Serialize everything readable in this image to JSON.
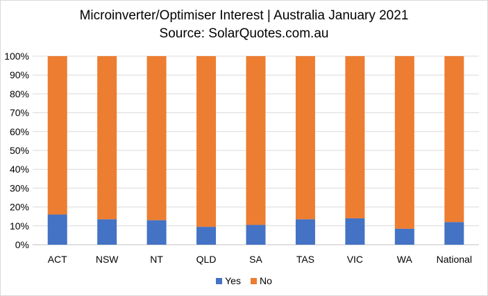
{
  "chart_data": {
    "type": "bar",
    "stacked": true,
    "title": "Microinverter/Optimiser  Interest | Australia January 2021",
    "subtitle": "Source: SolarQuotes.com.au",
    "categories": [
      "ACT",
      "NSW",
      "NT",
      "QLD",
      "SA",
      "TAS",
      "VIC",
      "WA",
      "National"
    ],
    "series": [
      {
        "name": "Yes",
        "color": "#4472c4",
        "values": [
          16,
          13.5,
          13,
          9.5,
          10.5,
          13.5,
          14,
          8.5,
          12
        ]
      },
      {
        "name": "No",
        "color": "#ed7d31",
        "values": [
          84,
          86.5,
          87,
          90.5,
          89.5,
          86.5,
          86,
          91.5,
          88
        ]
      }
    ],
    "ylim": [
      0,
      100
    ],
    "yticks": [
      "0%",
      "10%",
      "20%",
      "30%",
      "40%",
      "50%",
      "60%",
      "70%",
      "80%",
      "90%",
      "100%"
    ],
    "grid": true,
    "legend_position": "bottom"
  }
}
